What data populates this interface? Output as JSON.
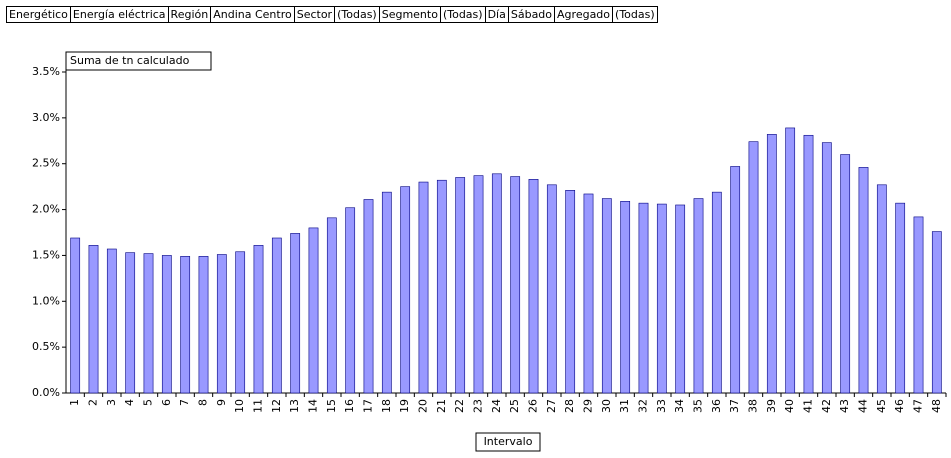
{
  "filters": [
    {
      "field": "Energético",
      "value": "Energía eléctrica"
    },
    {
      "field": "Región",
      "value": "Andina Centro"
    },
    {
      "field": "Sector",
      "value": "(Todas)"
    },
    {
      "field": "Segmento",
      "value": "(Todas)"
    },
    {
      "field": "Día",
      "value": "Sábado"
    },
    {
      "field": "Agregado",
      "value": "(Todas)"
    }
  ],
  "chart_data": {
    "type": "bar",
    "series_label": "Suma de tn calculado",
    "x_label": "Intervalo",
    "color": "#9999ff",
    "categories": [
      "1",
      "2",
      "3",
      "4",
      "5",
      "6",
      "7",
      "8",
      "9",
      "10",
      "11",
      "12",
      "13",
      "14",
      "15",
      "16",
      "17",
      "18",
      "19",
      "20",
      "21",
      "22",
      "23",
      "24",
      "25",
      "26",
      "27",
      "28",
      "29",
      "30",
      "31",
      "32",
      "33",
      "34",
      "35",
      "36",
      "37",
      "38",
      "39",
      "40",
      "41",
      "42",
      "43",
      "44",
      "45",
      "46",
      "47",
      "48"
    ],
    "values": [
      1.69,
      1.61,
      1.57,
      1.53,
      1.52,
      1.5,
      1.49,
      1.49,
      1.51,
      1.54,
      1.61,
      1.69,
      1.74,
      1.8,
      1.91,
      2.02,
      2.11,
      2.19,
      2.25,
      2.3,
      2.32,
      2.35,
      2.37,
      2.39,
      2.36,
      2.33,
      2.27,
      2.21,
      2.17,
      2.12,
      2.09,
      2.07,
      2.06,
      2.05,
      2.12,
      2.19,
      2.47,
      2.74,
      2.82,
      2.89,
      2.81,
      2.73,
      2.6,
      2.46,
      2.27,
      2.07,
      1.92,
      1.76
    ],
    "ylim": [
      0,
      3.5
    ],
    "yticks": [
      {
        "value": 0,
        "label": "0.0%"
      },
      {
        "value": 0.5,
        "label": "0.5%"
      },
      {
        "value": 1,
        "label": "1.0%"
      },
      {
        "value": 1.5,
        "label": "1.5%"
      },
      {
        "value": 2,
        "label": "2.0%"
      },
      {
        "value": 2.5,
        "label": "2.5%"
      },
      {
        "value": 3,
        "label": "3.0%"
      },
      {
        "value": 3.5,
        "label": "3.5%"
      }
    ]
  }
}
